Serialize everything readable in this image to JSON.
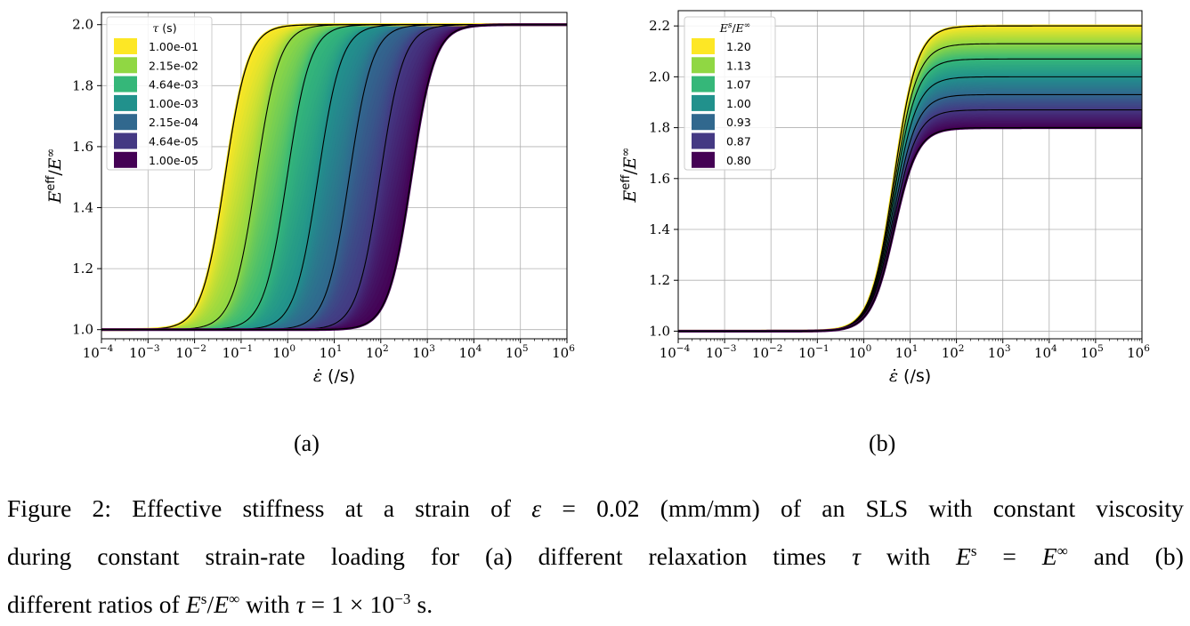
{
  "chart_data": [
    {
      "type": "line",
      "panel": "(a)",
      "xscale": "log",
      "xlim": [
        0.0001,
        1000000
      ],
      "ylim": [
        0.97,
        2.04
      ],
      "xlabel": "ε̇ (/s)",
      "ylabel": "E^eff / E^∞",
      "xticks": [
        "10⁻⁴",
        "10⁻³",
        "10⁻²",
        "10⁻¹",
        "10⁰",
        "10¹",
        "10²",
        "10³",
        "10⁴",
        "10⁵",
        "10⁶"
      ],
      "yticks": [
        "1.0",
        "1.2",
        "1.4",
        "1.6",
        "1.8",
        "2.0"
      ],
      "grid": true,
      "legend_title": "τ (s)",
      "legend_position": "top-left",
      "fill_between_curves": true,
      "colormap": "viridis",
      "series": [
        {
          "name": "1.00e-01",
          "color": "#fde725",
          "midpoint_x": 0.045,
          "y_low": 1.0,
          "y_high": 2.0
        },
        {
          "name": "2.15e-02",
          "color": "#90d743",
          "midpoint_x": 0.21,
          "y_low": 1.0,
          "y_high": 2.0
        },
        {
          "name": "4.64e-03",
          "color": "#35b779",
          "midpoint_x": 0.97,
          "y_low": 1.0,
          "y_high": 2.0
        },
        {
          "name": "1.00e-03",
          "color": "#21918c",
          "midpoint_x": 4.5,
          "y_low": 1.0,
          "y_high": 2.0
        },
        {
          "name": "2.15e-04",
          "color": "#31688e",
          "midpoint_x": 21,
          "y_low": 1.0,
          "y_high": 2.0
        },
        {
          "name": "4.64e-05",
          "color": "#443983",
          "midpoint_x": 97,
          "y_low": 1.0,
          "y_high": 2.0
        },
        {
          "name": "1.00e-05",
          "color": "#440154",
          "midpoint_x": 450,
          "y_low": 1.0,
          "y_high": 2.0
        }
      ]
    },
    {
      "type": "line",
      "panel": "(b)",
      "xscale": "log",
      "xlim": [
        0.0001,
        1000000
      ],
      "ylim": [
        0.97,
        2.26
      ],
      "xlabel": "ε̇ (/s)",
      "ylabel": "E^eff / E^∞",
      "xticks": [
        "10⁻⁴",
        "10⁻³",
        "10⁻²",
        "10⁻¹",
        "10⁰",
        "10¹",
        "10²",
        "10³",
        "10⁴",
        "10⁵",
        "10⁶"
      ],
      "yticks": [
        "1.0",
        "1.2",
        "1.4",
        "1.6",
        "1.8",
        "2.0",
        "2.2"
      ],
      "grid": true,
      "legend_title": "E^s / E^∞",
      "legend_position": "top-left",
      "fill_between_curves": true,
      "colormap": "viridis",
      "series": [
        {
          "name": "1.20",
          "color": "#fde725",
          "midpoint_x": 4.5,
          "y_low": 1.0,
          "y_high": 2.2
        },
        {
          "name": "1.13",
          "color": "#90d743",
          "midpoint_x": 4.5,
          "y_low": 1.0,
          "y_high": 2.13
        },
        {
          "name": "1.07",
          "color": "#35b779",
          "midpoint_x": 4.5,
          "y_low": 1.0,
          "y_high": 2.07
        },
        {
          "name": "1.00",
          "color": "#21918c",
          "midpoint_x": 4.5,
          "y_low": 1.0,
          "y_high": 2.0
        },
        {
          "name": "0.93",
          "color": "#31688e",
          "midpoint_x": 4.5,
          "y_low": 1.0,
          "y_high": 1.93
        },
        {
          "name": "0.87",
          "color": "#443983",
          "midpoint_x": 4.5,
          "y_low": 1.0,
          "y_high": 1.87
        },
        {
          "name": "0.80",
          "color": "#440154",
          "midpoint_x": 4.5,
          "y_low": 1.0,
          "y_high": 1.8
        }
      ]
    }
  ],
  "figure": {
    "sublabel_a": "(a)",
    "sublabel_b": "(b)",
    "caption_lines": [
      "Figure 2: Effective stiffness at a strain of ε = 0.02 (mm/mm) of an SLS with constant viscosity",
      "during constant strain-rate loading for (a) different relaxation times τ with E^s = E^∞ and (b)",
      "different ratios of E^s/E^∞ with τ = 1 × 10⁻³ s."
    ]
  }
}
